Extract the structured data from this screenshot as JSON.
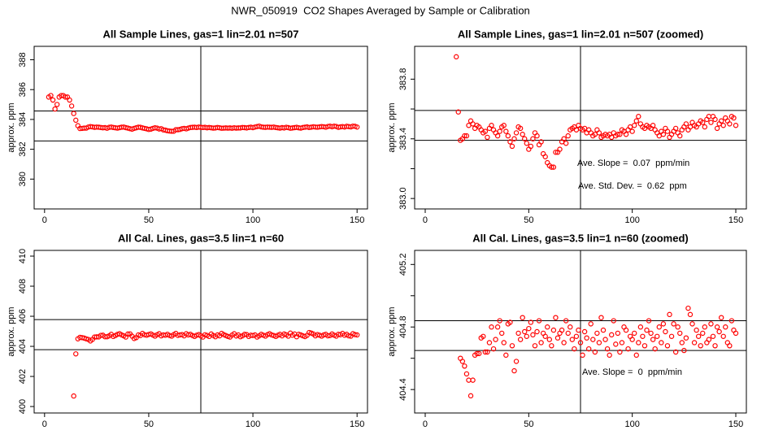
{
  "title": "NWR_050919  CO2 Shapes Averaged by Sample or Calibration",
  "chart_data": [
    {
      "type": "scatter",
      "title": "All Sample Lines, gas=1 lin=2.01 n=507",
      "ylabel": "approx. ppm",
      "color": "#ff0000",
      "xlim": [
        -5,
        155
      ],
      "ylim": [
        378,
        388.9
      ],
      "xticks": [
        0,
        50,
        100,
        150
      ],
      "yticks": [
        380,
        382,
        384,
        386,
        388
      ],
      "hlines": [
        384.57,
        382.56
      ],
      "vline": 75,
      "x": [
        2,
        3,
        4,
        5,
        6,
        7,
        8,
        9,
        10,
        11,
        12,
        13,
        14,
        15,
        16,
        17,
        18,
        19,
        20,
        21,
        22,
        23,
        24,
        25,
        26,
        27,
        28,
        29,
        30,
        31,
        32,
        33,
        34,
        35,
        36,
        37,
        38,
        39,
        40,
        41,
        42,
        43,
        44,
        45,
        46,
        47,
        48,
        49,
        50,
        51,
        52,
        53,
        54,
        55,
        56,
        57,
        58,
        59,
        60,
        61,
        62,
        63,
        64,
        65,
        66,
        67,
        68,
        69,
        70,
        71,
        72,
        73,
        74,
        75,
        76,
        77,
        78,
        79,
        80,
        81,
        82,
        83,
        84,
        85,
        86,
        87,
        88,
        89,
        90,
        91,
        92,
        93,
        94,
        95,
        96,
        97,
        98,
        99,
        100,
        101,
        102,
        103,
        104,
        105,
        106,
        107,
        108,
        109,
        110,
        111,
        112,
        113,
        114,
        115,
        116,
        117,
        118,
        119,
        120,
        121,
        122,
        123,
        124,
        125,
        126,
        127,
        128,
        129,
        130,
        131,
        132,
        133,
        134,
        135,
        136,
        137,
        138,
        139,
        140,
        141,
        142,
        143,
        144,
        145,
        146,
        147,
        148,
        149,
        150
      ],
      "values": [
        385.5,
        385.6,
        385.3,
        384.7,
        385.0,
        385.5,
        385.6,
        385.6,
        385.5,
        385.5,
        385.3,
        384.9,
        384.4,
        383.95,
        383.58,
        383.39,
        383.4,
        383.42,
        383.42,
        383.49,
        383.52,
        383.5,
        383.47,
        383.49,
        383.48,
        383.46,
        383.44,
        383.45,
        383.41,
        383.47,
        383.49,
        383.46,
        383.44,
        383.42,
        383.45,
        383.48,
        383.49,
        383.45,
        383.42,
        383.38,
        383.35,
        383.4,
        383.44,
        383.48,
        383.47,
        383.43,
        383.4,
        383.37,
        383.33,
        383.35,
        383.4,
        383.44,
        383.42,
        383.36,
        383.38,
        383.3,
        383.28,
        383.24,
        383.22,
        383.21,
        383.21,
        383.31,
        383.31,
        383.33,
        383.38,
        383.4,
        383.37,
        383.42,
        383.46,
        383.47,
        383.48,
        383.46,
        383.49,
        383.47,
        383.46,
        383.47,
        383.44,
        383.46,
        383.44,
        383.42,
        383.43,
        383.46,
        383.44,
        383.41,
        383.42,
        383.43,
        383.42,
        383.43,
        383.41,
        383.44,
        383.42,
        383.43,
        383.43,
        383.46,
        383.45,
        383.43,
        383.46,
        383.48,
        383.45,
        383.49,
        383.52,
        383.55,
        383.5,
        383.48,
        383.47,
        383.49,
        383.48,
        383.47,
        383.49,
        383.46,
        383.44,
        383.42,
        383.45,
        383.43,
        383.47,
        383.45,
        383.41,
        383.43,
        383.45,
        383.47,
        383.44,
        383.42,
        383.46,
        383.48,
        383.5,
        383.46,
        383.48,
        383.51,
        383.49,
        383.48,
        383.5,
        383.52,
        383.51,
        383.48,
        383.53,
        383.55,
        383.51,
        383.55,
        383.53,
        383.47,
        383.5,
        383.52,
        383.49,
        383.54,
        383.52,
        383.5,
        383.55,
        383.54,
        383.49
      ]
    },
    {
      "type": "scatter",
      "title": "All Sample Lines, gas=1 lin=2.01 n=507 (zoomed)",
      "ylabel": "approx. ppm",
      "color": "#ff0000",
      "xlim": [
        -5.1,
        155.1
      ],
      "ylim": [
        382.93,
        384.02
      ],
      "xticks": [
        0,
        50,
        100,
        150
      ],
      "yticks": [
        {
          "value": 383.0,
          "label": "383.0"
        },
        {
          "value": 383.4,
          "label": "383.4"
        },
        {
          "value": 383.8,
          "label": "383.8"
        }
      ],
      "yminor_ticks": [
        383.2,
        383.6
      ],
      "hlines": [
        383.59,
        383.39
      ],
      "vline": 75,
      "annotations": [
        "Ave. Slope =  0.07  ppm/min",
        "Ave. Std. Dev. =  0.62  ppm"
      ],
      "x": [
        15,
        16,
        17,
        18,
        19,
        20,
        21,
        22,
        23,
        24,
        25,
        26,
        27,
        28,
        29,
        30,
        31,
        32,
        33,
        34,
        35,
        36,
        37,
        38,
        39,
        40,
        41,
        42,
        43,
        44,
        45,
        46,
        47,
        48,
        49,
        50,
        51,
        52,
        53,
        54,
        55,
        56,
        57,
        58,
        59,
        60,
        61,
        62,
        63,
        64,
        65,
        66,
        67,
        68,
        69,
        70,
        71,
        72,
        73,
        74,
        75,
        76,
        77,
        78,
        79,
        80,
        81,
        82,
        83,
        84,
        85,
        86,
        87,
        88,
        89,
        90,
        91,
        92,
        93,
        94,
        95,
        96,
        97,
        98,
        99,
        100,
        101,
        102,
        103,
        104,
        105,
        106,
        107,
        108,
        109,
        110,
        111,
        112,
        113,
        114,
        115,
        116,
        117,
        118,
        119,
        120,
        121,
        122,
        123,
        124,
        125,
        126,
        127,
        128,
        129,
        130,
        131,
        132,
        133,
        134,
        135,
        136,
        137,
        138,
        139,
        140,
        141,
        142,
        143,
        144,
        145,
        146,
        147,
        148,
        149,
        150
      ],
      "values": [
        383.95,
        383.58,
        383.39,
        383.4,
        383.42,
        383.42,
        383.49,
        383.52,
        383.5,
        383.47,
        383.49,
        383.48,
        383.46,
        383.44,
        383.45,
        383.41,
        383.47,
        383.49,
        383.46,
        383.44,
        383.42,
        383.45,
        383.48,
        383.49,
        383.45,
        383.42,
        383.38,
        383.35,
        383.4,
        383.44,
        383.48,
        383.47,
        383.43,
        383.4,
        383.37,
        383.33,
        383.35,
        383.4,
        383.44,
        383.42,
        383.36,
        383.38,
        383.3,
        383.28,
        383.24,
        383.22,
        383.21,
        383.21,
        383.31,
        383.31,
        383.33,
        383.38,
        383.4,
        383.37,
        383.42,
        383.46,
        383.47,
        383.48,
        383.46,
        383.49,
        383.47,
        383.46,
        383.47,
        383.44,
        383.46,
        383.44,
        383.42,
        383.43,
        383.46,
        383.44,
        383.41,
        383.42,
        383.43,
        383.42,
        383.43,
        383.41,
        383.44,
        383.42,
        383.43,
        383.43,
        383.46,
        383.45,
        383.43,
        383.46,
        383.48,
        383.45,
        383.49,
        383.52,
        383.55,
        383.5,
        383.48,
        383.47,
        383.49,
        383.48,
        383.47,
        383.49,
        383.46,
        383.44,
        383.42,
        383.45,
        383.43,
        383.47,
        383.45,
        383.41,
        383.43,
        383.45,
        383.47,
        383.44,
        383.42,
        383.46,
        383.48,
        383.5,
        383.46,
        383.48,
        383.51,
        383.49,
        383.48,
        383.5,
        383.52,
        383.51,
        383.48,
        383.53,
        383.55,
        383.51,
        383.55,
        383.53,
        383.47,
        383.5,
        383.52,
        383.49,
        383.54,
        383.52,
        383.5,
        383.55,
        383.54,
        383.49
      ]
    },
    {
      "type": "scatter",
      "title": "All Cal. Lines, gas=3.5 lin=1 n=60",
      "ylabel": "approx. ppm",
      "color": "#ff0000",
      "xlim": [
        -5,
        155
      ],
      "ylim": [
        399.57,
        410.38
      ],
      "xticks": [
        0,
        50,
        100,
        150
      ],
      "yticks": [
        400,
        402,
        404,
        406,
        408,
        410
      ],
      "hlines": [
        405.78,
        403.78
      ],
      "vline": 75,
      "x": [
        14,
        15,
        16,
        17,
        18,
        19,
        20,
        21,
        22,
        23,
        24,
        25,
        26,
        27,
        28,
        29,
        30,
        31,
        32,
        33,
        34,
        35,
        36,
        37,
        38,
        39,
        40,
        41,
        42,
        43,
        44,
        45,
        46,
        47,
        48,
        49,
        50,
        51,
        52,
        53,
        54,
        55,
        56,
        57,
        58,
        59,
        60,
        61,
        62,
        63,
        64,
        65,
        66,
        67,
        68,
        69,
        70,
        71,
        72,
        73,
        74,
        75,
        76,
        77,
        78,
        79,
        80,
        81,
        82,
        83,
        84,
        85,
        86,
        87,
        88,
        89,
        90,
        91,
        92,
        93,
        94,
        95,
        96,
        97,
        98,
        99,
        100,
        101,
        102,
        103,
        104,
        105,
        106,
        107,
        108,
        109,
        110,
        111,
        112,
        113,
        114,
        115,
        116,
        117,
        118,
        119,
        120,
        121,
        122,
        123,
        124,
        125,
        126,
        127,
        128,
        129,
        130,
        131,
        132,
        133,
        134,
        135,
        136,
        137,
        138,
        139,
        140,
        141,
        142,
        143,
        144,
        145,
        146,
        147,
        148,
        149,
        150
      ],
      "values": [
        400.7,
        403.5,
        404.5,
        404.6,
        404.58,
        404.55,
        404.5,
        404.46,
        404.36,
        404.46,
        404.62,
        404.63,
        404.63,
        404.73,
        404.74,
        404.64,
        404.64,
        404.7,
        404.8,
        404.66,
        404.72,
        404.8,
        404.84,
        404.76,
        404.7,
        404.62,
        404.82,
        404.83,
        404.68,
        404.52,
        404.58,
        404.76,
        404.72,
        404.86,
        404.77,
        404.74,
        404.79,
        404.83,
        404.75,
        404.68,
        404.77,
        404.84,
        404.7,
        404.76,
        404.74,
        404.8,
        404.72,
        404.68,
        404.78,
        404.86,
        404.73,
        404.76,
        404.78,
        404.7,
        404.84,
        404.76,
        404.8,
        404.72,
        404.66,
        404.74,
        404.78,
        404.7,
        404.62,
        404.77,
        404.73,
        404.66,
        404.82,
        404.72,
        404.64,
        404.76,
        404.7,
        404.86,
        404.78,
        404.72,
        404.66,
        404.62,
        404.75,
        404.84,
        404.69,
        404.76,
        404.64,
        404.7,
        404.8,
        404.78,
        404.66,
        404.74,
        404.72,
        404.76,
        404.62,
        404.7,
        404.8,
        404.74,
        404.68,
        404.78,
        404.84,
        404.76,
        404.72,
        404.66,
        404.74,
        404.8,
        404.7,
        404.82,
        404.77,
        404.68,
        404.88,
        404.74,
        404.82,
        404.64,
        404.8,
        404.76,
        404.7,
        404.65,
        404.73,
        404.92,
        404.88,
        404.82,
        404.7,
        404.78,
        404.74,
        404.68,
        404.76,
        404.8,
        404.7,
        404.72,
        404.82,
        404.74,
        404.68,
        404.8,
        404.77,
        404.86,
        404.74,
        404.8,
        404.7,
        404.68,
        404.84,
        404.78,
        404.76
      ]
    },
    {
      "type": "scatter",
      "title": "All Cal. Lines, gas=3.5 lin=1 n=60 (zoomed)",
      "ylabel": "approx. ppm",
      "color": "#ff0000",
      "xlim": [
        -5.1,
        155.1
      ],
      "ylim": [
        404.25,
        405.29
      ],
      "xticks": [
        0,
        50,
        100,
        150
      ],
      "yticks": [
        {
          "value": 404.4,
          "label": "404.4"
        },
        {
          "value": 404.8,
          "label": "404.8"
        },
        {
          "value": 405.2,
          "label": "405.2"
        }
      ],
      "yminor_ticks": [
        404.6,
        405.0
      ],
      "hlines": [
        404.84,
        404.65
      ],
      "vline": 75,
      "annotations": [
        "Ave. Slope =  0  ppm/min"
      ],
      "x": [
        17,
        18,
        19,
        20,
        21,
        22,
        23,
        24,
        25,
        26,
        27,
        28,
        29,
        30,
        31,
        32,
        33,
        34,
        35,
        36,
        37,
        38,
        39,
        40,
        41,
        42,
        43,
        44,
        45,
        46,
        47,
        48,
        49,
        50,
        51,
        52,
        53,
        54,
        55,
        56,
        57,
        58,
        59,
        60,
        61,
        62,
        63,
        64,
        65,
        66,
        67,
        68,
        69,
        70,
        71,
        72,
        73,
        74,
        75,
        76,
        77,
        78,
        79,
        80,
        81,
        82,
        83,
        84,
        85,
        86,
        87,
        88,
        89,
        90,
        91,
        92,
        93,
        94,
        95,
        96,
        97,
        98,
        99,
        100,
        101,
        102,
        103,
        104,
        105,
        106,
        107,
        108,
        109,
        110,
        111,
        112,
        113,
        114,
        115,
        116,
        117,
        118,
        119,
        120,
        121,
        122,
        123,
        124,
        125,
        126,
        127,
        128,
        129,
        130,
        131,
        132,
        133,
        134,
        135,
        136,
        137,
        138,
        139,
        140,
        141,
        142,
        143,
        144,
        145,
        146,
        147,
        148,
        149,
        150
      ],
      "values": [
        404.6,
        404.58,
        404.55,
        404.5,
        404.46,
        404.36,
        404.46,
        404.62,
        404.63,
        404.63,
        404.73,
        404.74,
        404.64,
        404.64,
        404.7,
        404.8,
        404.66,
        404.72,
        404.8,
        404.84,
        404.76,
        404.7,
        404.62,
        404.82,
        404.83,
        404.68,
        404.52,
        404.58,
        404.76,
        404.72,
        404.86,
        404.77,
        404.74,
        404.79,
        404.83,
        404.75,
        404.68,
        404.77,
        404.84,
        404.7,
        404.76,
        404.74,
        404.8,
        404.72,
        404.68,
        404.78,
        404.86,
        404.73,
        404.76,
        404.78,
        404.7,
        404.84,
        404.76,
        404.8,
        404.72,
        404.66,
        404.74,
        404.78,
        404.7,
        404.62,
        404.77,
        404.73,
        404.66,
        404.82,
        404.72,
        404.64,
        404.76,
        404.7,
        404.86,
        404.78,
        404.72,
        404.66,
        404.62,
        404.75,
        404.84,
        404.69,
        404.76,
        404.64,
        404.7,
        404.8,
        404.78,
        404.66,
        404.74,
        404.72,
        404.76,
        404.62,
        404.7,
        404.8,
        404.74,
        404.68,
        404.78,
        404.84,
        404.76,
        404.72,
        404.66,
        404.74,
        404.8,
        404.7,
        404.82,
        404.77,
        404.68,
        404.88,
        404.74,
        404.82,
        404.64,
        404.8,
        404.76,
        404.7,
        404.65,
        404.73,
        404.92,
        404.88,
        404.82,
        404.7,
        404.78,
        404.74,
        404.68,
        404.76,
        404.8,
        404.7,
        404.72,
        404.82,
        404.74,
        404.68,
        404.8,
        404.77,
        404.86,
        404.74,
        404.8,
        404.7,
        404.68,
        404.84,
        404.78,
        404.76
      ]
    }
  ]
}
